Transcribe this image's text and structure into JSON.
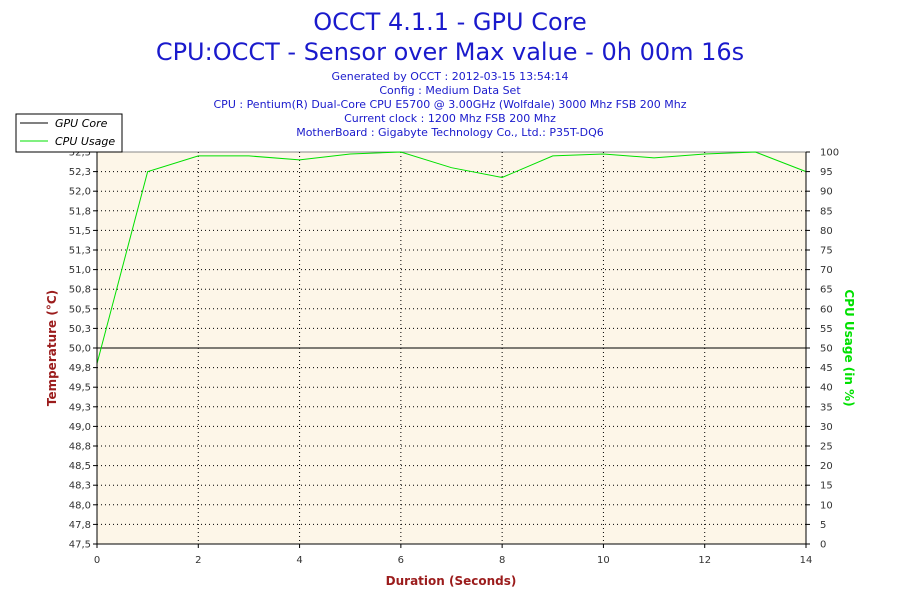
{
  "title": "OCCT 4.1.1 - GPU Core",
  "subtitle": "CPU:OCCT - Sensor over Max value - 0h 00m 16s",
  "info_lines": [
    "Generated by OCCT : 2012-03-15 13:54:14",
    "Config : Medium Data Set",
    "CPU : Pentium(R) Dual-Core CPU E5700 @ 3.00GHz (Wolfdale) 3000 Mhz FSB 200 Mhz",
    "Current clock : 1200 Mhz FSB 200 Mhz",
    "MotherBoard : Gigabyte Technology Co., Ltd.: P35T-DQ6"
  ],
  "colors": {
    "title": "#1a1acc",
    "plot_background": "#fdf6e8",
    "gpu_core": "#000000",
    "cpu_usage": "#00e000",
    "left_axis_title": "#9b1c1c",
    "right_axis_title": "#00e000",
    "x_axis_title": "#9b1c1c"
  },
  "chart_data": {
    "type": "line",
    "xlabel": "Duration (Seconds)",
    "ylabel": "Temperature (°C)",
    "y2label": "CPU Usage (in %)",
    "xlim": [
      0,
      14
    ],
    "ylim": [
      47.5,
      52.5
    ],
    "y2lim": [
      0,
      100
    ],
    "x_ticks": [
      "0",
      "2",
      "4",
      "6",
      "8",
      "10",
      "12",
      "14"
    ],
    "y_ticks": [
      "47,5",
      "47,8",
      "48,0",
      "48,3",
      "48,5",
      "48,8",
      "49,0",
      "49,3",
      "49,5",
      "49,8",
      "50,0",
      "50,3",
      "50,5",
      "50,8",
      "51,0",
      "51,3",
      "51,5",
      "51,8",
      "52,0",
      "52,3",
      "52,5"
    ],
    "y2_ticks": [
      "0",
      "5",
      "10",
      "15",
      "20",
      "25",
      "30",
      "35",
      "40",
      "45",
      "50",
      "55",
      "60",
      "65",
      "70",
      "75",
      "80",
      "85",
      "90",
      "95",
      "100"
    ],
    "grid": true,
    "legend_position": "top-left",
    "series": [
      {
        "name": "GPU Core",
        "axis": "left",
        "x": [
          0,
          1,
          2,
          3,
          4,
          5,
          6,
          7,
          8,
          9,
          10,
          11,
          12,
          13,
          14
        ],
        "values": [
          50,
          50,
          50,
          50,
          50,
          50,
          50,
          50,
          50,
          50,
          50,
          50,
          50,
          50,
          50
        ]
      },
      {
        "name": "CPU Usage",
        "axis": "right",
        "x": [
          0,
          1,
          2,
          3,
          4,
          5,
          6,
          7,
          8,
          9,
          10,
          11,
          12,
          13,
          14
        ],
        "values": [
          46,
          95,
          99,
          99,
          98,
          99.5,
          100,
          96,
          93.5,
          99,
          99.5,
          98.5,
          99.5,
          100,
          95
        ]
      }
    ]
  }
}
